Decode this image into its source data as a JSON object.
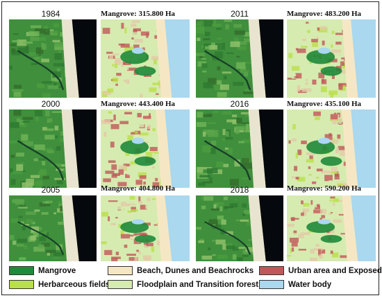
{
  "panels": [
    {
      "year": "1984",
      "mangrove": "Mangrove: 315.800 Ha"
    },
    {
      "year": "2011",
      "mangrove": "Mangrove: 483.200 Ha"
    },
    {
      "year": "2000",
      "mangrove": "Mangrove: 443.400 Ha"
    },
    {
      "year": "2016",
      "mangrove": "Mangrove: 435.100 Ha"
    },
    {
      "year": "2005",
      "mangrove": "Mangrove: 404.800 Ha"
    },
    {
      "year": "2018",
      "mangrove": "Mangrove: 590.200 Ha"
    }
  ],
  "legend": [
    {
      "label": "Mangrove",
      "color": "#1f8a3a"
    },
    {
      "label": "Herbarceous fields",
      "color": "#b9e04a"
    },
    {
      "label": "Beach, Dunes and Beachrocks",
      "color": "#f6e7c4"
    },
    {
      "label": "Floodplain and Transition forest",
      "color": "#d6ebb0"
    },
    {
      "label": "Urban area and Exposed soil",
      "color": "#c0585a"
    },
    {
      "label": "Water body",
      "color": "#a9d8ef"
    }
  ]
}
